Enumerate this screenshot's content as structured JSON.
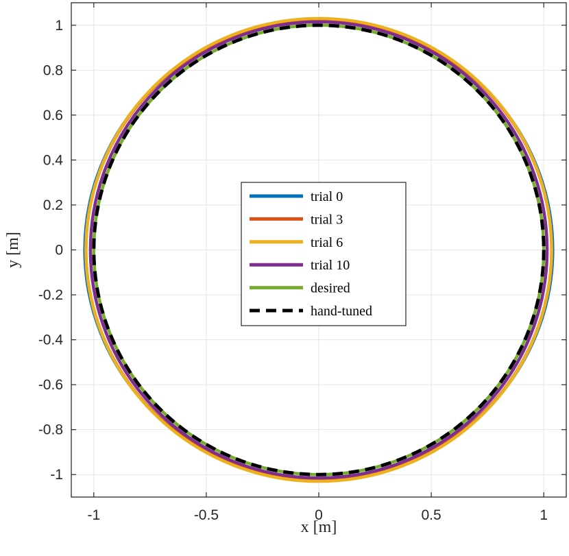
{
  "chart_data": {
    "type": "line",
    "xlabel": "x [m]",
    "ylabel": "y [m]",
    "xlim": [
      -1.1,
      1.1
    ],
    "ylim": [
      -1.1,
      1.1
    ],
    "xticks": [
      -1,
      -0.5,
      0,
      0.5,
      1
    ],
    "xtick_labels": [
      "-1",
      "-0.5",
      "0",
      "0.5",
      "1"
    ],
    "yticks": [
      -1,
      -0.8,
      -0.6,
      -0.4,
      -0.2,
      0,
      0.2,
      0.4,
      0.6,
      0.8,
      1
    ],
    "ytick_labels": [
      "-1",
      "-0.8",
      "-0.6",
      "-0.4",
      "-0.2",
      "0",
      "0.2",
      "0.4",
      "0.6",
      "0.8",
      "1"
    ],
    "grid": true,
    "legend_position": "center",
    "series": [
      {
        "name": "trial 0",
        "color": "#0072BD",
        "style": "solid",
        "cx": 0.0,
        "cy": 0.0,
        "rx": 1.04,
        "ry": 1.02,
        "shape": "near-circle; leftmost x≈-1.05 near y=0, top ends at (0.31, 1.0), bottom ≈-1.03"
      },
      {
        "name": "trial 3",
        "color": "#D95319",
        "style": "solid",
        "cx": 0.0,
        "cy": 0.0,
        "rx": 1.035,
        "ry": 1.025,
        "shape": "near-circle; rightmost x≈1.035 near y=-0.3"
      },
      {
        "name": "trial 6",
        "color": "#EDB120",
        "style": "solid",
        "cx": 0.0,
        "cy": 0.0,
        "rx": 1.035,
        "ry": 1.03,
        "shape": "near-circle; top ≈1.03, bottom ≈-1.03"
      },
      {
        "name": "trial 10",
        "color": "#7E2F8E",
        "style": "solid",
        "cx": 0.0,
        "cy": 0.0,
        "rx": 1.015,
        "ry": 1.015,
        "shape": "near-circle slightly outside desired"
      },
      {
        "name": "desired",
        "color": "#77AC30",
        "style": "solid",
        "cx": 0.0,
        "cy": 0.0,
        "rx": 1.0,
        "ry": 1.0,
        "shape": "unit circle"
      },
      {
        "name": "hand-tuned",
        "color": "#000000",
        "style": "dashed",
        "cx": 0.0,
        "cy": 0.0,
        "rx": 1.0,
        "ry": 1.0,
        "shape": "unit circle"
      }
    ]
  }
}
